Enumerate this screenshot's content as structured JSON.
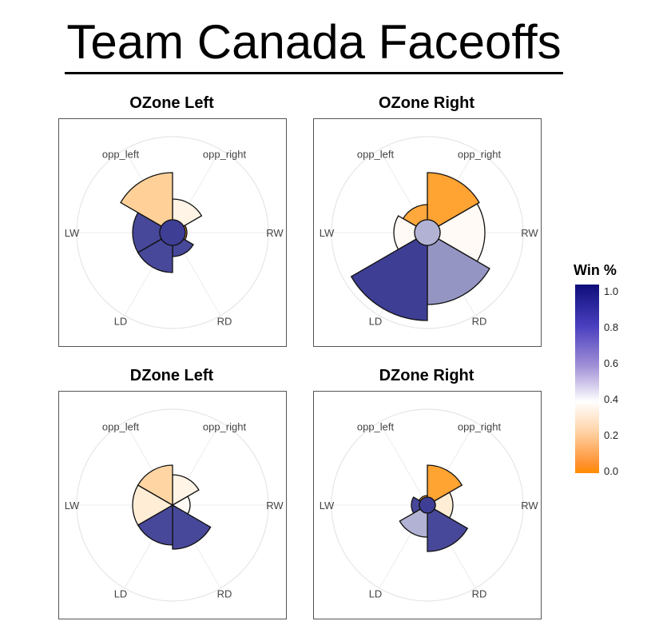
{
  "title": "Team Canada Faceoffs",
  "legend": {
    "title": "Win %",
    "ticks": [
      "1.0",
      "0.8",
      "0.6",
      "0.4",
      "0.2",
      "0.0"
    ],
    "colors": [
      "#ff8c00",
      "#ffffff",
      "#0e0e7a"
    ]
  },
  "chart_data": [
    {
      "type": "polar-bar",
      "title": "OZone Left",
      "angular_labels": [
        "opp_left",
        "opp_right",
        "RW",
        "RD",
        "LD",
        "LW"
      ],
      "sectors": [
        "opp_right",
        "RW",
        "RD",
        "LD",
        "LW",
        "opp_left",
        "center"
      ],
      "size": [
        0.42,
        0.1,
        0.3,
        0.5,
        0.5,
        0.75,
        0.16
      ],
      "win_pct": [
        0.45,
        0.1,
        0.88,
        0.88,
        0.88,
        0.3,
        0.9
      ]
    },
    {
      "type": "polar-bar",
      "title": "OZone Right",
      "angular_labels": [
        "opp_left",
        "opp_right",
        "RW",
        "RD",
        "LD",
        "LW"
      ],
      "sectors": [
        "opp_right",
        "RW",
        "RD",
        "LD",
        "LW",
        "opp_left",
        "center"
      ],
      "size": [
        0.75,
        0.72,
        0.9,
        1.1,
        0.42,
        0.35,
        0.16
      ],
      "win_pct": [
        0.1,
        0.48,
        0.72,
        0.9,
        0.48,
        0.12,
        0.66
      ]
    },
    {
      "type": "polar-bar",
      "title": "DZone Left",
      "angular_labels": [
        "opp_left",
        "opp_right",
        "RW",
        "RD",
        "LD",
        "LW"
      ],
      "sectors": [
        "opp_right",
        "RW",
        "RD",
        "LD",
        "LW",
        "opp_left",
        "center"
      ],
      "size": [
        0.38,
        0.22,
        0.55,
        0.5,
        0.5,
        0.5,
        0.0
      ],
      "win_pct": [
        0.45,
        0.48,
        0.88,
        0.88,
        0.42,
        0.32,
        0.0
      ]
    },
    {
      "type": "polar-bar",
      "title": "DZone Right",
      "angular_labels": [
        "opp_left",
        "opp_right",
        "RW",
        "RD",
        "LD",
        "LW"
      ],
      "sectors": [
        "opp_right",
        "RW",
        "RD",
        "LD",
        "LW",
        "opp_left",
        "center"
      ],
      "size": [
        0.5,
        0.32,
        0.58,
        0.4,
        0.2,
        0.12,
        0.1
      ],
      "win_pct": [
        0.1,
        0.42,
        0.88,
        0.66,
        0.88,
        0.12,
        0.9
      ]
    }
  ]
}
